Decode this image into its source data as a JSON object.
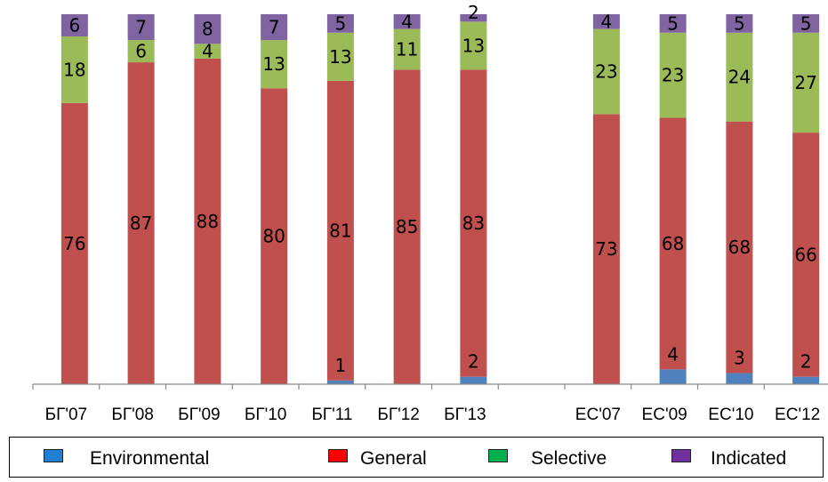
{
  "chart_data": {
    "type": "bar",
    "stacked": true,
    "categories": [
      "БГ'07",
      "БГ'08",
      "БГ'09",
      "БГ'10",
      "БГ'11",
      "БГ'12",
      "БГ'13",
      "",
      "ЕС'07",
      "ЕС'09",
      "ЕС'10",
      "ЕС'12"
    ],
    "series": [
      {
        "name": "Environmental",
        "color": "#4f81bd",
        "values": [
          0,
          0,
          0,
          0,
          1,
          0,
          2,
          null,
          0,
          4,
          3,
          2
        ],
        "labels": [
          "",
          "",
          "",
          "",
          "1",
          "",
          "2",
          "",
          "",
          "4",
          "3",
          "2"
        ]
      },
      {
        "name": "General",
        "color": "#c0504d",
        "values": [
          76,
          87,
          88,
          80,
          81,
          85,
          83,
          null,
          73,
          68,
          68,
          66
        ],
        "labels": [
          "76",
          "87",
          "88",
          "80",
          "81",
          "85",
          "83",
          "",
          "73",
          "68",
          "68",
          "66"
        ]
      },
      {
        "name": "Selective",
        "color": "#9bbb59",
        "values": [
          18,
          6,
          4,
          13,
          13,
          11,
          13,
          null,
          23,
          23,
          24,
          27
        ],
        "labels": [
          "18",
          "6",
          "4",
          "13",
          "13",
          "11",
          "13",
          "",
          "23",
          "23",
          "24",
          "27"
        ]
      },
      {
        "name": "Indicated",
        "color": "#8064a2",
        "values": [
          6,
          7,
          8,
          7,
          5,
          4,
          2,
          null,
          4,
          5,
          5,
          5
        ],
        "labels": [
          "6",
          "7",
          "8",
          "7",
          "5",
          "4",
          "2",
          "",
          "4",
          "5",
          "5",
          "5"
        ]
      }
    ],
    "ylim": [
      0,
      100
    ],
    "grid": false,
    "legend_position": "bottom"
  },
  "legend": {
    "items": [
      {
        "label": "Environmental",
        "color": "#1f7fd0"
      },
      {
        "label": "General",
        "color": "#ff0000"
      },
      {
        "label": "Selective",
        "color": "#00b050"
      },
      {
        "label": "Indicated",
        "color": "#7030a0"
      }
    ]
  }
}
